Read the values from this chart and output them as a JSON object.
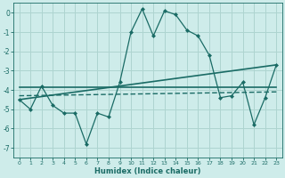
{
  "xlabel": "Humidex (Indice chaleur)",
  "xlim": [
    -0.5,
    23.5
  ],
  "ylim": [
    -7.5,
    0.5
  ],
  "yticks": [
    0,
    -1,
    -2,
    -3,
    -4,
    -5,
    -6,
    -7
  ],
  "xticks": [
    0,
    1,
    2,
    3,
    4,
    5,
    6,
    7,
    8,
    9,
    10,
    11,
    12,
    13,
    14,
    15,
    16,
    17,
    18,
    19,
    20,
    21,
    22,
    23
  ],
  "bg_color": "#ceecea",
  "grid_color": "#aed4d0",
  "line_color": "#1a6b65",
  "line1_x": [
    0,
    1,
    2,
    3,
    4,
    5,
    6,
    7,
    8,
    9,
    10,
    11,
    12,
    13,
    14,
    15,
    16,
    17,
    18,
    19,
    20,
    21,
    22,
    23
  ],
  "line1_y": [
    -4.5,
    -5.0,
    -3.8,
    -4.8,
    -5.2,
    -5.2,
    -6.8,
    -5.2,
    -5.4,
    -3.6,
    -1.0,
    0.2,
    -1.2,
    0.1,
    -0.1,
    -0.9,
    -1.2,
    -2.2,
    -4.4,
    -4.3,
    -3.6,
    -5.8,
    -4.4,
    -2.7
  ],
  "line2_x": [
    0,
    23
  ],
  "line2_y": [
    -3.85,
    -3.85
  ],
  "line3_x": [
    0,
    23
  ],
  "line3_y": [
    -4.5,
    -2.7
  ],
  "line4_x": [
    0,
    23
  ],
  "line4_y": [
    -4.3,
    -4.1
  ]
}
